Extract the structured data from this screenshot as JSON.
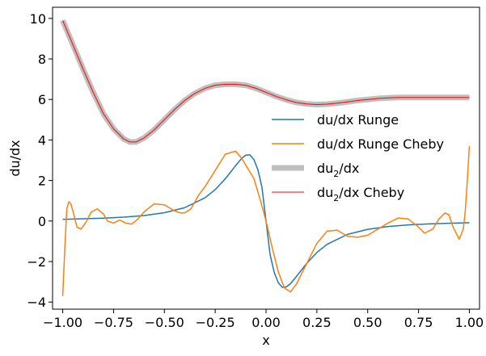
{
  "chart_data": {
    "type": "line",
    "xlabel": "x",
    "ylabel": "du/dx",
    "xlim": [
      -1.05,
      1.05
    ],
    "ylim": [
      -4.35,
      10.55
    ],
    "xticks": [
      -1.0,
      -0.75,
      -0.5,
      -0.25,
      0.0,
      0.25,
      0.5,
      0.75,
      1.0
    ],
    "xtick_labels": [
      "−1.00",
      "−0.75",
      "−0.50",
      "−0.25",
      "0.00",
      "0.25",
      "0.50",
      "0.75",
      "1.00"
    ],
    "yticks": [
      -4,
      -2,
      0,
      2,
      4,
      6,
      8,
      10
    ],
    "ytick_labels": [
      "−4",
      "−2",
      "0",
      "2",
      "4",
      "6",
      "8",
      "10"
    ],
    "grid": false,
    "legend_position": "center-right",
    "series": [
      {
        "name": "du/dx Runge",
        "color": "#1f77b4",
        "width": 1.5,
        "x": [
          -1.0,
          -0.9,
          -0.8,
          -0.7,
          -0.6,
          -0.5,
          -0.4,
          -0.3,
          -0.25,
          -0.2,
          -0.15,
          -0.12,
          -0.1,
          -0.08,
          -0.06,
          -0.04,
          -0.02,
          0.0,
          0.02,
          0.04,
          0.06,
          0.08,
          0.1,
          0.12,
          0.15,
          0.2,
          0.25,
          0.3,
          0.4,
          0.5,
          0.6,
          0.7,
          0.8,
          0.9,
          1.0
        ],
        "y": [
          0.08,
          0.11,
          0.14,
          0.19,
          0.27,
          0.41,
          0.66,
          1.15,
          1.55,
          2.09,
          2.73,
          3.09,
          3.25,
          3.27,
          3.04,
          2.53,
          1.66,
          0.0,
          -1.66,
          -2.53,
          -3.04,
          -3.27,
          -3.25,
          -3.09,
          -2.73,
          -2.09,
          -1.55,
          -1.15,
          -0.66,
          -0.41,
          -0.27,
          -0.19,
          -0.14,
          -0.11,
          -0.08
        ]
      },
      {
        "name": "du/dx Runge Cheby",
        "color": "#ff7f0e",
        "width": 1.5,
        "x": [
          -1.0,
          -0.99,
          -0.98,
          -0.97,
          -0.96,
          -0.95,
          -0.93,
          -0.91,
          -0.885,
          -0.86,
          -0.83,
          -0.8,
          -0.78,
          -0.75,
          -0.72,
          -0.69,
          -0.66,
          -0.63,
          -0.6,
          -0.55,
          -0.5,
          -0.45,
          -0.42,
          -0.4,
          -0.37,
          -0.33,
          -0.3,
          -0.25,
          -0.2,
          -0.15,
          -0.12,
          -0.09,
          -0.06,
          -0.03,
          0.0,
          0.03,
          0.06,
          0.09,
          0.12,
          0.15,
          0.2,
          0.25,
          0.3,
          0.35,
          0.4,
          0.45,
          0.5,
          0.55,
          0.6,
          0.65,
          0.7,
          0.75,
          0.78,
          0.82,
          0.85,
          0.88,
          0.9,
          0.92,
          0.95,
          0.97,
          0.98,
          0.99,
          1.0
        ],
        "y": [
          -3.7,
          -1.4,
          0.6,
          0.95,
          0.85,
          0.5,
          -0.3,
          -0.4,
          -0.05,
          0.45,
          0.6,
          0.35,
          0.0,
          -0.1,
          0.05,
          -0.1,
          -0.15,
          0.1,
          0.45,
          0.85,
          0.8,
          0.5,
          0.4,
          0.4,
          0.6,
          1.3,
          1.7,
          2.5,
          3.3,
          3.45,
          3.1,
          2.6,
          2.1,
          1.1,
          0.0,
          -1.3,
          -2.5,
          -3.3,
          -3.5,
          -3.1,
          -2.1,
          -1.1,
          -0.5,
          -0.45,
          -0.75,
          -0.8,
          -0.7,
          -0.4,
          -0.1,
          0.15,
          0.1,
          -0.3,
          -0.6,
          -0.4,
          0.1,
          0.4,
          0.3,
          -0.3,
          -0.9,
          -0.4,
          0.5,
          2.0,
          3.7
        ]
      },
      {
        "name": "du₂/dx",
        "legend_label": "du",
        "legend_subscript": "2",
        "legend_suffix": "/dx",
        "color": "#bfbfbf",
        "width": 7,
        "x": [
          -1.0,
          -0.95,
          -0.9,
          -0.85,
          -0.8,
          -0.75,
          -0.7,
          -0.67,
          -0.64,
          -0.6,
          -0.55,
          -0.5,
          -0.45,
          -0.4,
          -0.35,
          -0.3,
          -0.25,
          -0.2,
          -0.15,
          -0.1,
          -0.05,
          0.0,
          0.05,
          0.1,
          0.15,
          0.2,
          0.25,
          0.3,
          0.35,
          0.4,
          0.45,
          0.5,
          0.55,
          0.6,
          0.65,
          0.7,
          0.75,
          0.8,
          0.85,
          0.9,
          0.95,
          1.0
        ],
        "y": [
          9.9,
          8.7,
          7.5,
          6.35,
          5.3,
          4.55,
          4.05,
          3.9,
          3.9,
          4.1,
          4.5,
          5.0,
          5.5,
          5.95,
          6.3,
          6.55,
          6.7,
          6.75,
          6.75,
          6.7,
          6.55,
          6.35,
          6.15,
          5.98,
          5.85,
          5.78,
          5.75,
          5.77,
          5.82,
          5.88,
          5.95,
          6.0,
          6.05,
          6.08,
          6.1,
          6.1,
          6.1,
          6.1,
          6.1,
          6.1,
          6.1,
          6.1
        ]
      },
      {
        "name": "du₂/dx Cheby",
        "legend_label": "du",
        "legend_subscript": "2",
        "legend_suffix": "/dx Cheby",
        "color": "#ff0000",
        "width": 1,
        "x": [
          -1.0,
          -0.95,
          -0.9,
          -0.85,
          -0.8,
          -0.75,
          -0.7,
          -0.67,
          -0.64,
          -0.6,
          -0.55,
          -0.5,
          -0.45,
          -0.4,
          -0.35,
          -0.3,
          -0.25,
          -0.2,
          -0.15,
          -0.1,
          -0.05,
          0.0,
          0.05,
          0.1,
          0.15,
          0.2,
          0.25,
          0.3,
          0.35,
          0.4,
          0.45,
          0.5,
          0.55,
          0.6,
          0.65,
          0.7,
          0.75,
          0.8,
          0.85,
          0.9,
          0.95,
          1.0
        ],
        "y": [
          9.9,
          8.7,
          7.5,
          6.35,
          5.3,
          4.55,
          4.05,
          3.9,
          3.9,
          4.1,
          4.5,
          5.0,
          5.5,
          5.95,
          6.3,
          6.55,
          6.7,
          6.75,
          6.75,
          6.7,
          6.55,
          6.35,
          6.15,
          5.98,
          5.85,
          5.78,
          5.75,
          5.77,
          5.82,
          5.88,
          5.95,
          6.0,
          6.05,
          6.08,
          6.1,
          6.1,
          6.1,
          6.1,
          6.1,
          6.1,
          6.1,
          6.1
        ]
      }
    ]
  }
}
